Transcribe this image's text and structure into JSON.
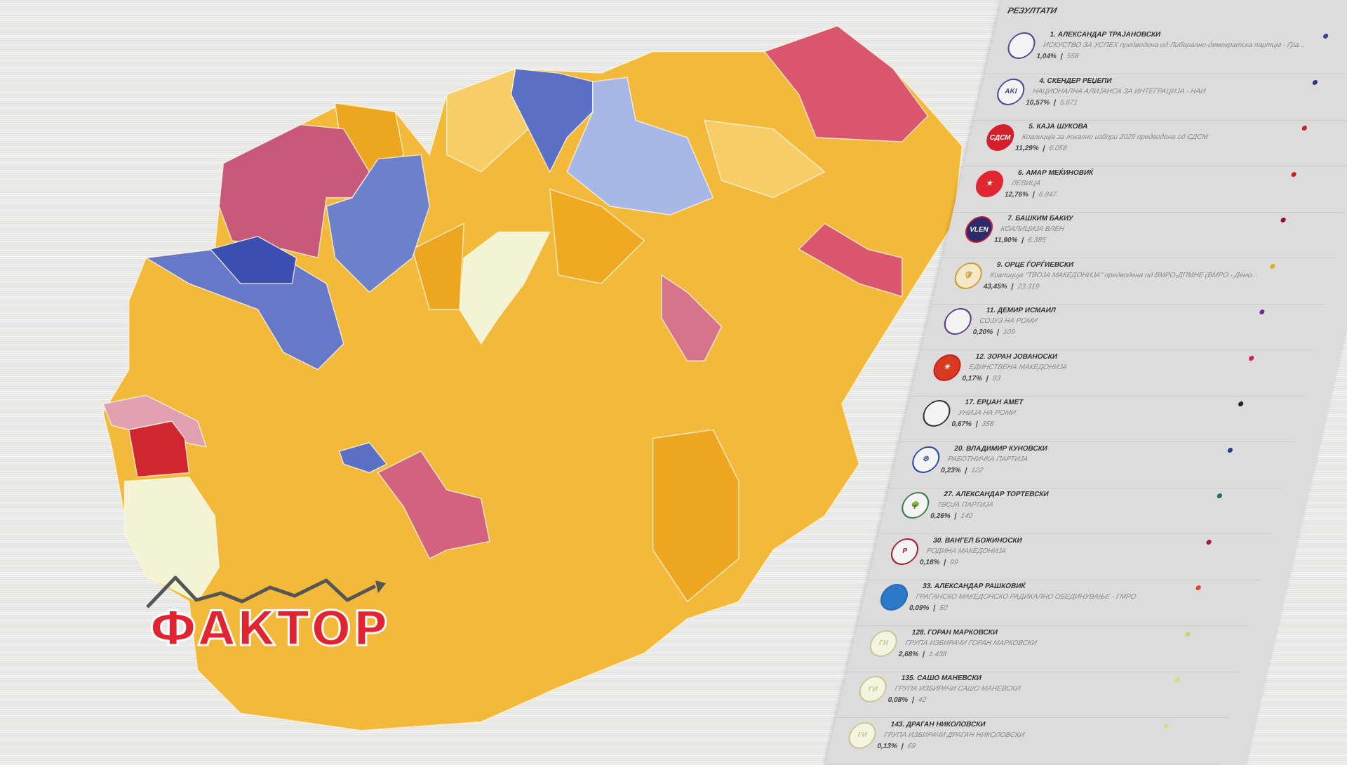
{
  "brand": {
    "logo_text": "ФАКТОР"
  },
  "results": {
    "title": "РЕЗУЛТАТИ",
    "items": [
      {
        "name": "1. АЛЕКСАНДАР ТРАЈАНОВСКИ",
        "party": "ИСКУСТВО ЗА УСПЕХ предводена од Либерално-демократска партија - Гра...",
        "percent": "1,04%",
        "votes": "558",
        "color": "#3b3f9e",
        "logo_color": "#f4f4f4",
        "logo_border": "#4a4a8a",
        "logo_label": ""
      },
      {
        "name": "4. СКЕНДЕР РЕЏЕПИ",
        "party": "НАЦИОНАЛНА АЛИЈАНСА ЗА ИНТЕГРАЦИЈА - НАИ",
        "percent": "10,57%",
        "votes": "5.671",
        "color": "#2a3a8a",
        "logo_color": "#f4f4f4",
        "logo_border": "#4a4a9a",
        "logo_label": "AKI"
      },
      {
        "name": "5. КАЈА ШУКОВА",
        "party": "Коалиција за локални избори 2025 предводена од СДСМ",
        "percent": "11,29%",
        "votes": "6.058",
        "color": "#c8202a",
        "logo_color": "#d3202c",
        "logo_border": "#d3202c",
        "logo_label": "СДСМ"
      },
      {
        "name": "6. АМАР МЕЌИНОВИЌ",
        "party": "ЛЕВИЦА",
        "percent": "12,76%",
        "votes": "6.847",
        "color": "#d02020",
        "logo_color": "#e0262e",
        "logo_border": "#e0262e",
        "logo_label": "★"
      },
      {
        "name": "7. БАШКИМ БАКИУ",
        "party": "КОАЛИЦИЈА ВЛЕН",
        "percent": "11,90%",
        "votes": "6.385",
        "color": "#9a1030",
        "logo_color": "#2d2a6a",
        "logo_border": "#c02040",
        "logo_label": "VLEN"
      },
      {
        "name": "9. ОРЦЕ ЃОРЃИЕВСКИ",
        "party": "Коалиција \"ТВОЈА МАКЕДОНИЈА\" предводена од ВМРО-ДПМНЕ (ВМРО - Демо...",
        "percent": "43,45%",
        "votes": "23.319",
        "color": "#e0b020",
        "logo_color": "#f4e8c8",
        "logo_border": "#c8a030",
        "logo_label": "🛡"
      },
      {
        "name": "11. ДЕМИР ИСМАИЛ",
        "party": "СОЈУЗ НА РОМИ",
        "percent": "0,20%",
        "votes": "109",
        "color": "#7a2aa0",
        "logo_color": "#f4f4f4",
        "logo_border": "#5a3a8a",
        "logo_label": ""
      },
      {
        "name": "12. ЗОРАН ЈОВАНОСКИ",
        "party": "ЕДИНСТВЕНА МАКЕДОНИЈА",
        "percent": "0,17%",
        "votes": "93",
        "color": "#d02050",
        "logo_color": "#d83a20",
        "logo_border": "#c02020",
        "logo_label": "☀"
      },
      {
        "name": "17. ЕРЏАН АМЕТ",
        "party": "УНИЈА НА РОМИ",
        "percent": "0,67%",
        "votes": "358",
        "color": "#222222",
        "logo_color": "#f4f4f4",
        "logo_border": "#333333",
        "logo_label": ""
      },
      {
        "name": "20. ВЛАДИМИР КУНОВСКИ",
        "party": "РАБОТНИЧКА ПАРТИЈА",
        "percent": "0,23%",
        "votes": "122",
        "color": "#2a3a8a",
        "logo_color": "#f4f4f4",
        "logo_border": "#2a4aa0",
        "logo_label": "⚙"
      },
      {
        "name": "27. АЛЕКСАНДАР ТОРТЕВСКИ",
        "party": "ТВОЈА ПАРТИЈА",
        "percent": "0,26%",
        "votes": "140",
        "color": "#2a6a6a",
        "logo_color": "#f4f4f4",
        "logo_border": "#3a7a4a",
        "logo_label": "🌳"
      },
      {
        "name": "30. ВАНГЕЛ БОЖИНОСКИ",
        "party": "РОДИНА МАКЕДОНИЈА",
        "percent": "0,18%",
        "votes": "99",
        "color": "#a01a30",
        "logo_color": "#f4f4f4",
        "logo_border": "#a02030",
        "logo_label": "P"
      },
      {
        "name": "33. АЛЕКСАНДАР РАШКОВИЌ",
        "party": "ГРАЃАНСКО МАКЕДОНСКО РАДИКАЛНО ОБЕДИНУВАЊЕ - ГМРО",
        "percent": "0,09%",
        "votes": "50",
        "color": "#e04a20",
        "logo_color": "#2a7ac8",
        "logo_border": "#2a6ab0",
        "logo_label": ""
      },
      {
        "name": "128. ГОРАН МАРКОВСКИ",
        "party": "ГРУПА ИЗБИРАЧИ ГОРАН МАРКОВСКИ",
        "percent": "2,68%",
        "votes": "1.438",
        "color": "#c8d870",
        "logo_color": "#f4f4e0",
        "logo_border": "#c8c890",
        "logo_label": "ГИ"
      },
      {
        "name": "135. САШО МАНЕВСКИ",
        "party": "ГРУПА ИЗБИРАЧИ САШО МАНЕВСКИ",
        "percent": "0,08%",
        "votes": "42",
        "color": "#d0e080",
        "logo_color": "#f4f4e0",
        "logo_border": "#c8c890",
        "logo_label": "ГИ"
      },
      {
        "name": "143. ДРАГАН НИКОЛОВСКИ",
        "party": "ГРУПА ИЗБИРАЧИ ДРАГАН НИКОЛОВСКИ",
        "percent": "0,13%",
        "votes": "69",
        "color": "#d0e080",
        "logo_color": "#f4f4e0",
        "logo_border": "#c8c890",
        "logo_label": "ГИ"
      }
    ]
  },
  "map": {
    "colors": {
      "base": "#f2b93b",
      "dark_yellow": "#eda61f",
      "light_yellow": "#f6cd66",
      "red": "#d9566e",
      "blue": "#5b6fc4",
      "light_blue": "#a8b8e6",
      "dark_blue": "#3a4fb0",
      "cream": "#f3f3d6",
      "bright_red": "#d0262f"
    }
  }
}
